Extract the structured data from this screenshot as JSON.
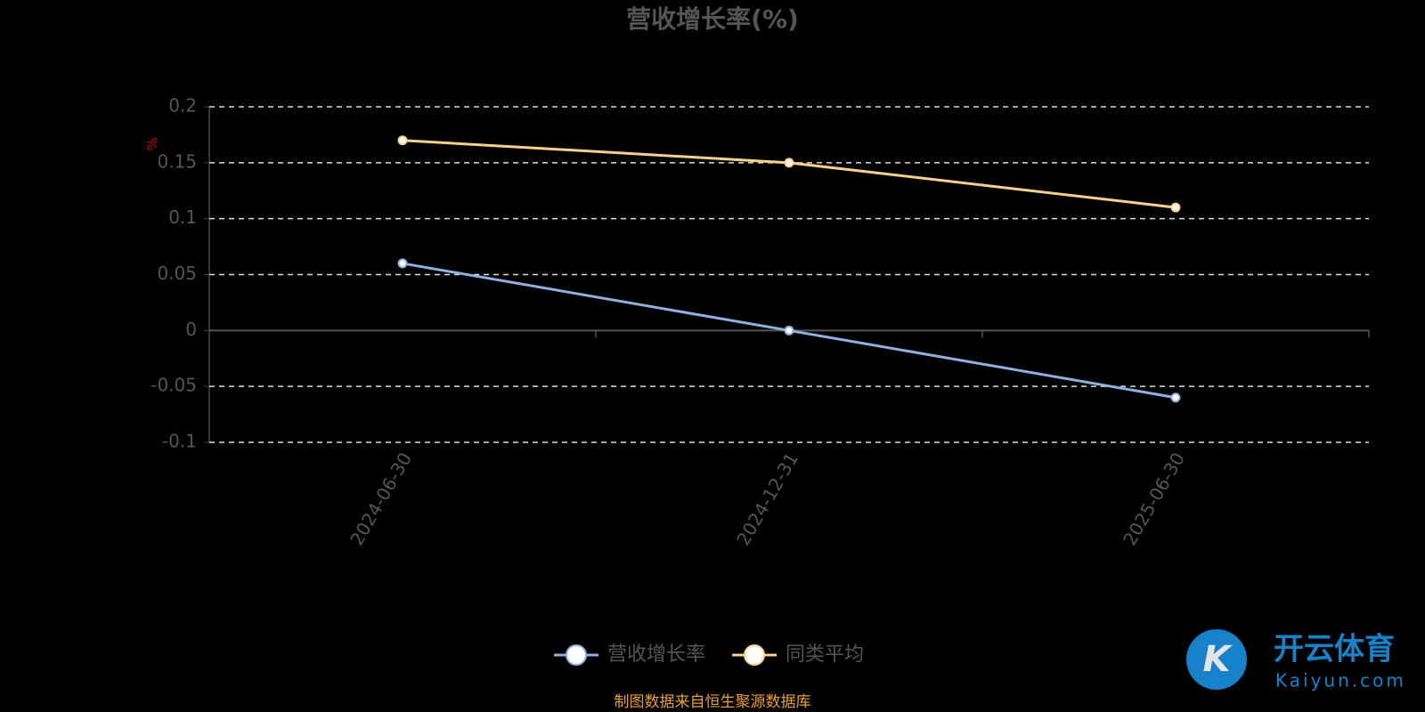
{
  "chart_data": {
    "type": "line",
    "title": "营收增长率(%)",
    "y_label": "%",
    "categories": [
      "2024-06-30",
      "2024-12-31",
      "2025-06-30"
    ],
    "series": [
      {
        "name": "营收增长率",
        "color": "#8fb0e0",
        "values": [
          0.06,
          0,
          -0.06
        ]
      },
      {
        "name": "同类平均",
        "color": "#f7d08e",
        "values": [
          0.17,
          0.15,
          0.11
        ]
      }
    ],
    "ylim": [
      -0.1,
      0.2
    ],
    "yticks": [
      -0.1,
      -0.05,
      0,
      0.05,
      0.1,
      0.15,
      0.2
    ],
    "grid": true,
    "legend": "bottom",
    "source": "制图数据来自恒生聚源数据库",
    "watermark": {
      "text": "开云体育",
      "subtext": "Kaiyun.com"
    }
  }
}
